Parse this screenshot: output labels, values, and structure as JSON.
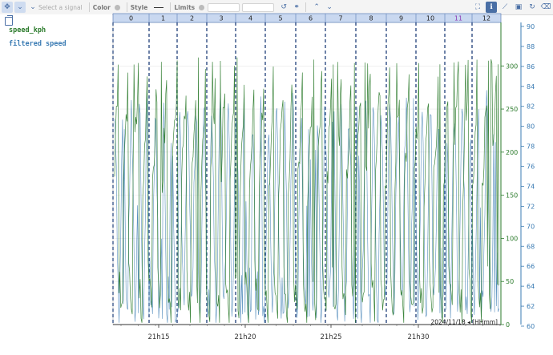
{
  "toolbar": {
    "signal_placeholder": "Select a signal",
    "color_label": "Color",
    "style_label": "Style",
    "limits_label": "Limits"
  },
  "legend": [
    {
      "label": "speed_kph",
      "color": "#2a7a2a"
    },
    {
      "label": "filtered speed",
      "color": "#3a7bb3"
    }
  ],
  "segments": [
    "0",
    "1",
    "2",
    "3",
    "4",
    "5",
    "6",
    "7",
    "8",
    "9",
    "10",
    "11",
    "12"
  ],
  "segment_highlight_index": 11,
  "chart_data": {
    "type": "line",
    "x_ticks": [
      "21h15",
      "21h20",
      "21h25",
      "21h30"
    ],
    "time_label": "2024/11/18 ◂ [HHmm]",
    "y_right_ticks": [
      0,
      50,
      100,
      150,
      200,
      250,
      300
    ],
    "y_far_right_ticks": [
      60,
      62,
      64,
      66,
      68,
      70,
      72,
      74,
      76,
      78,
      80,
      82,
      84,
      86,
      88,
      90
    ],
    "series": [
      {
        "name": "speed_kph",
        "color": "#2a7a2a"
      },
      {
        "name": "filtered speed",
        "color": "#3a7bb3"
      }
    ]
  }
}
